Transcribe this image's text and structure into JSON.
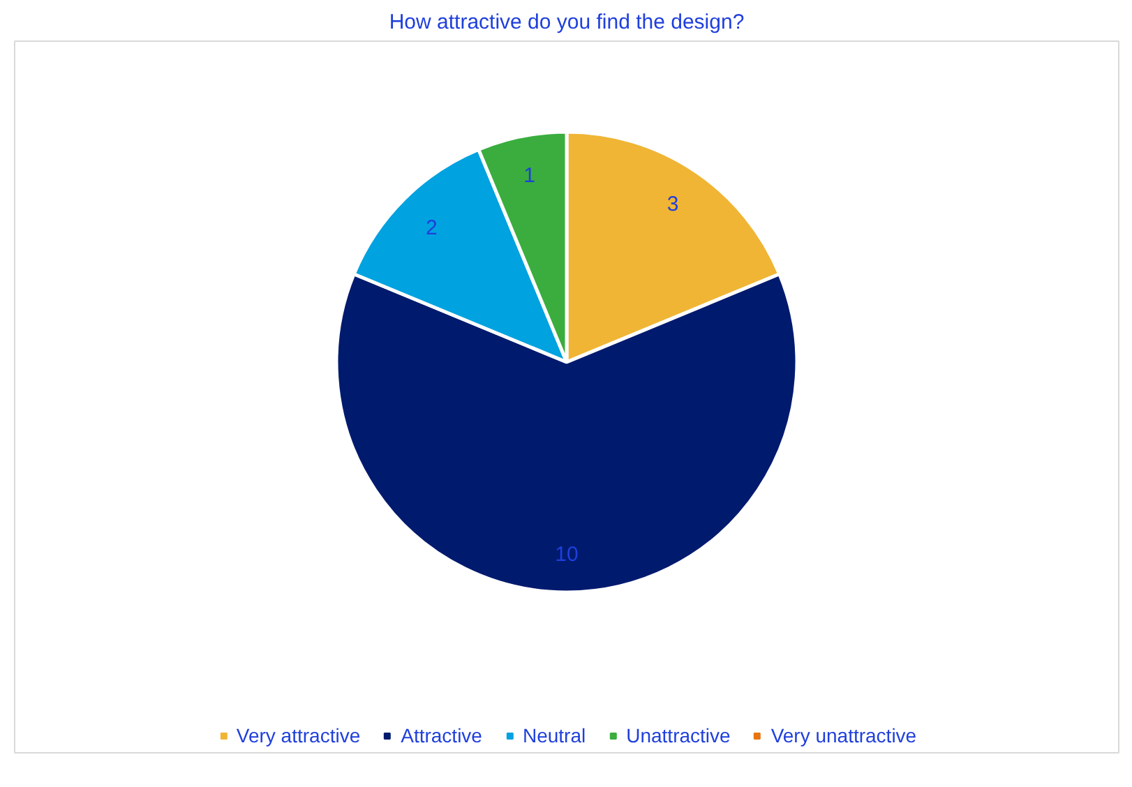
{
  "chart_data": {
    "type": "pie",
    "title": "How attractive do you find the design?",
    "categories": [
      "Very attractive",
      "Attractive",
      "Neutral",
      "Unattractive",
      "Very unattractive"
    ],
    "values": [
      3,
      10,
      2,
      1,
      0
    ],
    "value_labels": [
      "3",
      "10",
      "2",
      "1",
      null
    ],
    "colors": [
      "#f0b535",
      "#001a6e",
      "#00a2e0",
      "#3aad3e",
      "#e87511"
    ],
    "legend": "bottom"
  }
}
